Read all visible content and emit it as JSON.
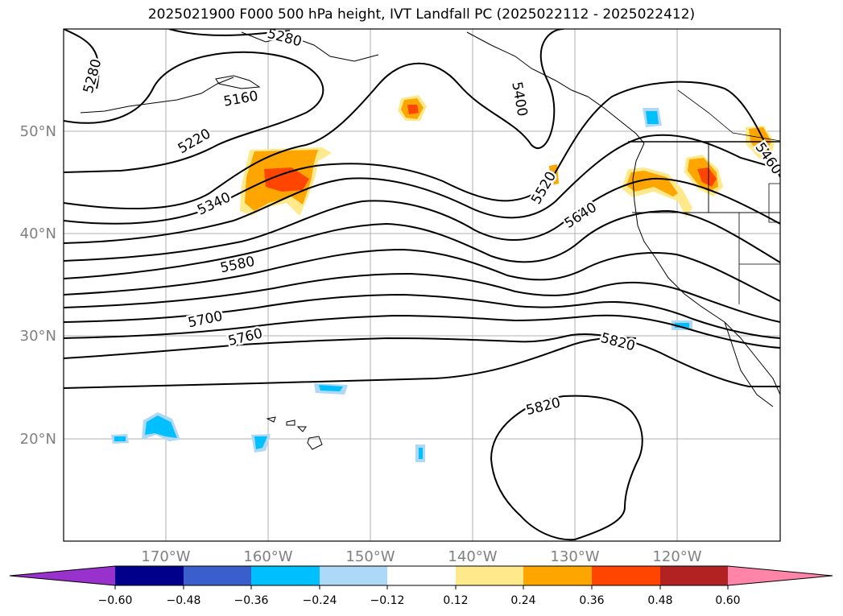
{
  "title": "2025021900 F000 500 hPa height, IVT Landfall PC (2025022112 - 2025022412)",
  "lon_labels": [
    "170°W",
    "160°W",
    "150°W",
    "140°W",
    "130°W",
    "120°W"
  ],
  "lat_labels": [
    "50°N",
    "40°N",
    "30°N",
    "20°N"
  ],
  "contour_labels": [
    "5280",
    "5160",
    "5220",
    "5340",
    "5580",
    "5700",
    "5760",
    "5820",
    "5820",
    "5520",
    "5640",
    "5400",
    "5460",
    "5280"
  ],
  "colorbar": {
    "ticks": [
      "−0.60",
      "−0.48",
      "−0.36",
      "−0.24",
      "−0.12",
      "0.12",
      "0.24",
      "0.36",
      "0.48",
      "0.60"
    ],
    "colors": [
      "#9932cc",
      "#00008b",
      "#3a5fcd",
      "#00bfff",
      "#add8f7",
      "#ffffff",
      "#ffe98a",
      "#ffa500",
      "#ff4500",
      "#b22222",
      "#ff85a8"
    ]
  },
  "colors": {
    "contour": "#000000",
    "grid": "#b0b0b0",
    "tick_label": "#808080"
  }
}
